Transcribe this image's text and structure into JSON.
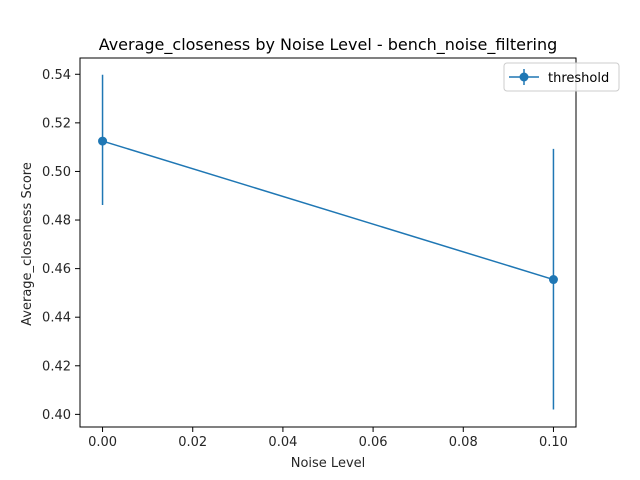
{
  "chart_data": {
    "type": "line",
    "title": "Average_closeness by Noise Level - bench_noise_filtering",
    "xlabel": "Noise Level",
    "ylabel": "Average_closeness Score",
    "xlim": [
      -0.005,
      0.105
    ],
    "ylim": [
      0.3948,
      0.5467
    ],
    "x_ticks": [
      0.0,
      0.02,
      0.04,
      0.06,
      0.08,
      0.1
    ],
    "x_tick_labels": [
      "0.00",
      "0.02",
      "0.04",
      "0.06",
      "0.08",
      "0.10"
    ],
    "y_ticks": [
      0.4,
      0.42,
      0.44,
      0.46,
      0.48,
      0.5,
      0.52,
      0.54
    ],
    "y_tick_labels": [
      "0.40",
      "0.42",
      "0.44",
      "0.46",
      "0.48",
      "0.50",
      "0.52",
      "0.54"
    ],
    "grid": false,
    "legend_position": "top-right",
    "series": [
      {
        "name": "threshold",
        "color": "#1f77b4",
        "x": [
          0.0,
          0.1
        ],
        "y": [
          0.5125,
          0.4555
        ],
        "yerr_low": [
          0.4862,
          0.402
        ],
        "yerr_high": [
          0.5398,
          0.5093
        ]
      }
    ]
  }
}
